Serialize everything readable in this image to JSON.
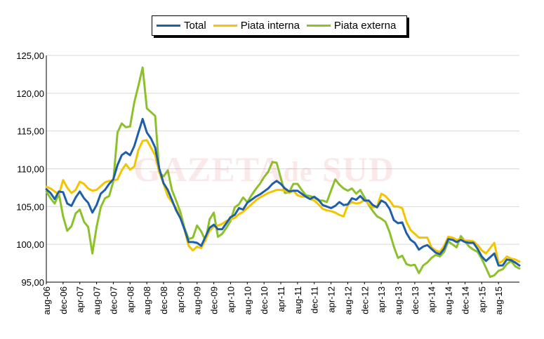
{
  "chart_data": {
    "type": "line",
    "title": "",
    "xlabel": "",
    "ylabel": "",
    "ylim": [
      95,
      125
    ],
    "yticks": [
      "95,00",
      "100,00",
      "105,00",
      "110,00",
      "115,00",
      "120,00",
      "125,00"
    ],
    "ytick_values": [
      95,
      100,
      105,
      110,
      115,
      120,
      125
    ],
    "grid": "horizontal",
    "legend_position": "top-center",
    "x_start": "aug-06",
    "x_end": "aug-15",
    "x_tick_labels": [
      "aug-06",
      "dec-06",
      "apr-07",
      "aug-07",
      "dec-07",
      "apr-08",
      "aug-08",
      "dec-08",
      "apr-09",
      "aug-09",
      "dec-09",
      "apr-10",
      "aug-10",
      "dec-10",
      "apr-11",
      "aug-11",
      "dec-11",
      "apr-12",
      "aug-12",
      "dec-12",
      "apr-13",
      "aug-13",
      "dec-13",
      "apr-14",
      "aug-14",
      "dec-14",
      "apr-15",
      "aug-15"
    ],
    "series": [
      {
        "name": "Total",
        "color": "#1f5fa8",
        "values": [
          107.3,
          106.8,
          106.0,
          107.0,
          106.9,
          105.4,
          105.1,
          106.2,
          107.0,
          106.1,
          105.5,
          104.2,
          105.2,
          106.7,
          107.2,
          108.0,
          108.6,
          110.5,
          111.8,
          112.2,
          111.8,
          113.0,
          114.8,
          116.6,
          114.8,
          114.0,
          112.8,
          110.0,
          108.1,
          107.2,
          105.9,
          104.5,
          103.5,
          102.0,
          100.3,
          100.3,
          100.2,
          99.8,
          101.0,
          102.2,
          102.6,
          102.0,
          102.0,
          102.8,
          103.6,
          103.9,
          104.8,
          104.6,
          105.5,
          105.9,
          106.3,
          106.6,
          107.0,
          107.4,
          108.0,
          108.4,
          108.0,
          107.4,
          107.0,
          107.1,
          107.1,
          106.7,
          106.3,
          106.0,
          106.3,
          105.9,
          105.2,
          105.0,
          104.8,
          105.1,
          105.6,
          105.2,
          105.3,
          106.1,
          105.9,
          106.4,
          105.8,
          105.8,
          105.2,
          104.9,
          105.8,
          105.5,
          104.7,
          103.2,
          102.8,
          102.9,
          101.5,
          100.6,
          100.2,
          99.3,
          99.7,
          99.9,
          99.4,
          98.9,
          98.7,
          99.4,
          100.7,
          100.6,
          100.3,
          100.6,
          100.3,
          100.2,
          100.2,
          99.4,
          98.4,
          97.8,
          98.3,
          98.8,
          97.2,
          97.2,
          98.0,
          97.9,
          97.6,
          97.2
        ]
      },
      {
        "name": "Piata interna",
        "color": "#f5c400",
        "values": [
          107.6,
          107.4,
          107.0,
          106.6,
          108.5,
          107.5,
          106.8,
          107.2,
          108.3,
          108.0,
          107.4,
          107.1,
          107.2,
          107.7,
          108.2,
          108.4,
          108.4,
          108.6,
          109.8,
          110.6,
          109.9,
          110.3,
          112.5,
          113.7,
          113.8,
          112.8,
          111.8,
          109.5,
          108.0,
          106.4,
          105.6,
          104.8,
          103.6,
          102.0,
          99.8,
          99.2,
          99.7,
          99.5,
          100.6,
          101.8,
          102.4,
          102.5,
          102.7,
          103.1,
          103.3,
          103.5,
          104.0,
          104.3,
          104.8,
          105.3,
          105.8,
          106.2,
          106.5,
          106.8,
          107.0,
          107.2,
          107.2,
          107.1,
          106.8,
          107.1,
          106.5,
          106.3,
          106.3,
          106.0,
          105.8,
          105.3,
          104.7,
          104.5,
          104.4,
          104.2,
          103.9,
          103.7,
          105.2,
          105.6,
          105.4,
          105.5,
          105.9,
          105.3,
          104.9,
          105.0,
          106.7,
          106.4,
          105.8,
          105.0,
          105.0,
          104.8,
          103.0,
          101.9,
          101.4,
          100.9,
          100.9,
          100.9,
          99.6,
          99.2,
          99.0,
          99.8,
          101.0,
          100.9,
          100.6,
          100.7,
          100.5,
          100.5,
          100.4,
          99.9,
          99.2,
          98.8,
          99.5,
          100.2,
          97.5,
          97.8,
          98.4,
          98.1,
          98.0,
          97.7
        ]
      },
      {
        "name": "Piata externa",
        "color": "#8cc12b",
        "values": [
          107.0,
          106.1,
          105.4,
          106.7,
          103.7,
          101.8,
          102.4,
          104.1,
          104.6,
          103.0,
          102.3,
          98.8,
          102.3,
          104.9,
          106.1,
          106.4,
          108.3,
          114.8,
          116.0,
          115.5,
          115.6,
          118.8,
          121.0,
          123.4,
          118.0,
          117.5,
          117.0,
          109.5,
          109.0,
          109.8,
          107.2,
          105.8,
          104.3,
          102.2,
          100.7,
          100.9,
          102.5,
          101.7,
          100.5,
          103.3,
          104.2,
          101.0,
          101.4,
          102.2,
          103.1,
          104.9,
          105.3,
          106.2,
          105.6,
          106.5,
          107.3,
          108.0,
          108.9,
          109.6,
          110.9,
          110.8,
          108.8,
          106.8,
          106.9,
          108.0,
          108.0,
          107.2,
          106.5,
          106.4,
          106.2,
          105.8,
          105.8,
          105.6,
          107.1,
          108.6,
          107.9,
          107.4,
          107.1,
          107.4,
          106.7,
          107.2,
          106.2,
          105.2,
          104.4,
          103.7,
          103.4,
          103.0,
          101.6,
          99.7,
          98.2,
          98.5,
          97.4,
          97.2,
          97.3,
          96.2,
          97.2,
          97.6,
          98.2,
          98.6,
          98.4,
          99.0,
          100.4,
          100.0,
          99.6,
          101.1,
          100.4,
          99.7,
          99.3,
          99.0,
          98.1,
          96.9,
          95.7,
          95.9,
          96.5,
          96.7,
          97.4,
          97.8,
          97.1,
          96.8
        ]
      }
    ]
  },
  "watermark": {
    "text_main": "GAZETA",
    "text_small": "de",
    "text_end": "SUD"
  }
}
